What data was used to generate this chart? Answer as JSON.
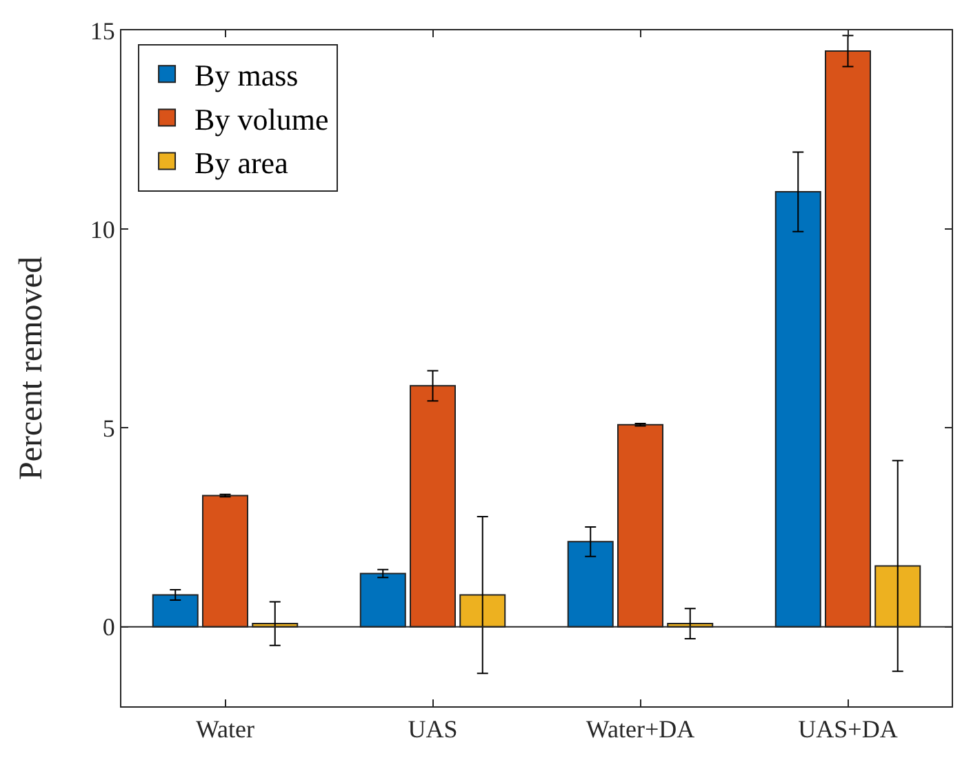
{
  "chart_data": {
    "type": "bar",
    "ylabel": "Percent removed",
    "categories": [
      "Water",
      "UAS",
      "Water+DA",
      "UAS+DA"
    ],
    "series": [
      {
        "name": "By mass",
        "color": "#0072bd",
        "values": [
          0.8,
          1.34,
          2.14,
          10.94
        ],
        "errors": [
          0.13,
          0.1,
          0.37,
          1.0
        ]
      },
      {
        "name": "By volume",
        "color": "#d95319",
        "values": [
          3.3,
          6.06,
          5.08,
          14.48
        ],
        "errors": [
          0.03,
          0.38,
          0.03,
          0.39
        ]
      },
      {
        "name": "By area",
        "color": "#edb120",
        "values": [
          0.08,
          0.8,
          0.08,
          1.53
        ],
        "errors": [
          0.55,
          1.97,
          0.38,
          2.65
        ]
      }
    ],
    "ylim": [
      -2,
      15
    ],
    "yticks": [
      0,
      5,
      10,
      15
    ],
    "grid": false,
    "legend": "top left",
    "ref_lines": [
      {
        "axis": "y",
        "value": 0,
        "color": "#262626"
      }
    ]
  }
}
